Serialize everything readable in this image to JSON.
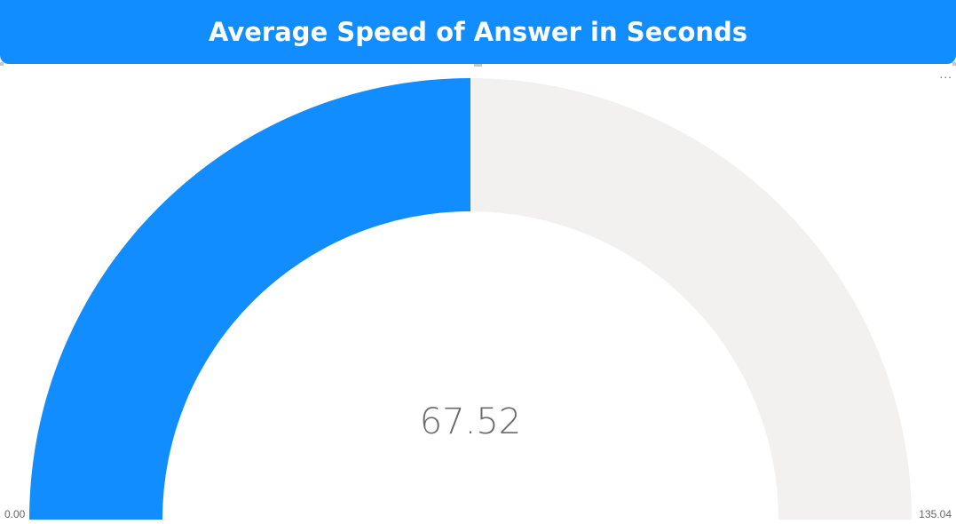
{
  "header": {
    "title": "Average Speed of Answer in Seconds"
  },
  "visual_menu": {
    "more_options_label": "..."
  },
  "colors": {
    "accent": "#118DFF",
    "track": "#F2F1F0",
    "header_text": "#FFFFFF",
    "value_text": "#6A6A6A"
  },
  "chart_data": {
    "type": "gauge",
    "title": "Average Speed of Answer in Seconds",
    "value": 67.52,
    "value_label": "67.52",
    "min": 0,
    "max": 135.04,
    "min_label": "0.00",
    "max_label": "135.04"
  }
}
